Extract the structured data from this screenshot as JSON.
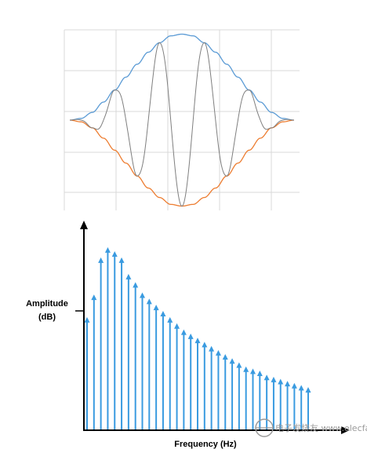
{
  "chart_data": [
    {
      "type": "line",
      "x": [
        -1.0,
        -0.9,
        -0.8,
        -0.7,
        -0.6,
        -0.5,
        -0.4,
        -0.3,
        -0.2,
        -0.1,
        0.0,
        0.1,
        0.2,
        0.3,
        0.4,
        0.5,
        0.6,
        0.7,
        0.8,
        0.9,
        1.0
      ],
      "series": [
        {
          "values": [
            0.0,
            0.02,
            0.09,
            0.21,
            0.35,
            0.5,
            0.65,
            0.79,
            0.9,
            0.98,
            1.0,
            0.98,
            0.9,
            0.79,
            0.65,
            0.5,
            0.35,
            0.21,
            0.09,
            0.02,
            0.0
          ]
        },
        {
          "values": [
            0.0,
            -0.02,
            -0.09,
            -0.21,
            -0.35,
            -0.5,
            -0.65,
            -0.79,
            -0.9,
            -0.98,
            -1.0,
            -0.98,
            -0.9,
            -0.79,
            -0.65,
            -0.5,
            -0.35,
            -0.21,
            -0.09,
            -0.02,
            0.0
          ]
        },
        {
          "values": [
            0.0,
            -0.02,
            0.0,
            0.08,
            -0.35,
            0.48,
            -0.61,
            0.72,
            -0.9,
            0.95,
            -1.0,
            0.95,
            -0.9,
            0.72,
            -0.61,
            0.48,
            -0.35,
            0.08,
            0.0,
            -0.02,
            0.0
          ]
        }
      ],
      "xlim": [
        -1.05,
        1.05
      ],
      "ylim": [
        -1.05,
        1.05
      ],
      "grid": true,
      "colors": {
        "upper_envelope": "#5b9bd5",
        "lower_envelope": "#ed7d31",
        "signal": "#7f7f7f",
        "grid": "#d9d9d9"
      }
    },
    {
      "type": "bar",
      "xlabel": "Frequency (Hz)",
      "ylabel": "Amplitude (dB)",
      "ylabel_lines": [
        "Amplitude",
        "(dB)"
      ],
      "values": [
        0.55,
        0.66,
        0.84,
        0.89,
        0.87,
        0.84,
        0.76,
        0.72,
        0.67,
        0.64,
        0.61,
        0.58,
        0.55,
        0.52,
        0.49,
        0.47,
        0.45,
        0.43,
        0.41,
        0.39,
        0.37,
        0.35,
        0.33,
        0.31,
        0.3,
        0.29,
        0.27,
        0.26,
        0.25,
        0.24,
        0.23,
        0.22,
        0.21
      ],
      "ylim": [
        0,
        1.0
      ],
      "grid": false,
      "colors": {
        "bars": "#3a9be0",
        "axes": "#000000"
      }
    }
  ],
  "watermark": "电子发烧友 www.elecfans.com"
}
